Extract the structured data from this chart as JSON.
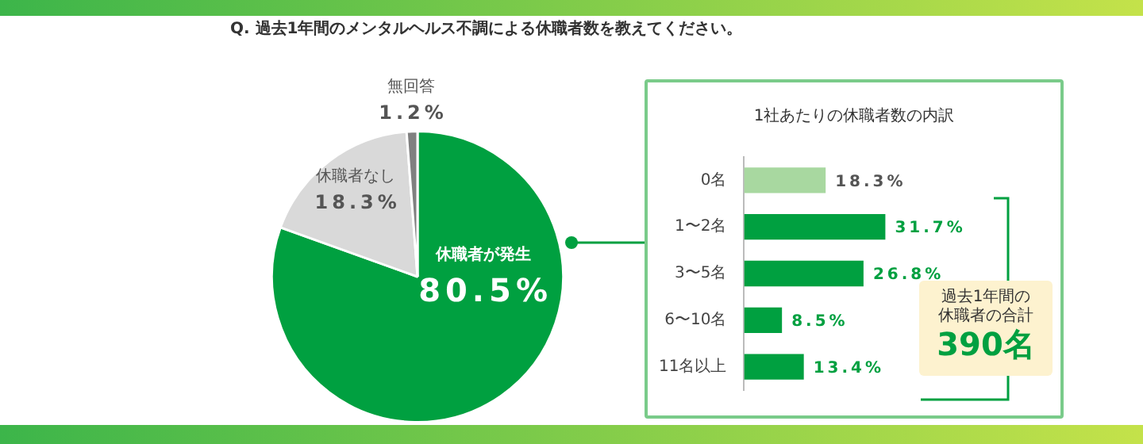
{
  "chart_data": [
    {
      "type": "pie",
      "title": "Q. 過去1年間のメンタルヘルス不調による休職者数を教えてください。",
      "categories": [
        "休職者が発生",
        "休職者なし",
        "無回答"
      ],
      "values": [
        80.5,
        18.3,
        1.2
      ],
      "colors": [
        "#00a040",
        "#d9d9d9",
        "#808080"
      ],
      "value_labels": [
        "80.5%",
        "18.3%",
        "1.2%"
      ]
    },
    {
      "type": "bar",
      "orientation": "horizontal",
      "title": "1社あたりの休職者数の内訳",
      "categories": [
        "0名",
        "1〜2名",
        "3〜5名",
        "6〜10名",
        "11名以上"
      ],
      "values": [
        18.3,
        31.7,
        26.8,
        8.5,
        13.4
      ],
      "colors": [
        "#a8d8a0",
        "#00a040",
        "#00a040",
        "#00a040",
        "#00a040"
      ],
      "value_labels": [
        "18.3%",
        "31.7%",
        "26.8%",
        "8.5%",
        "13.4%"
      ],
      "tick_labels": "y",
      "annotations": [
        "過去1年間の休職者の合計",
        "390名"
      ]
    }
  ]
}
